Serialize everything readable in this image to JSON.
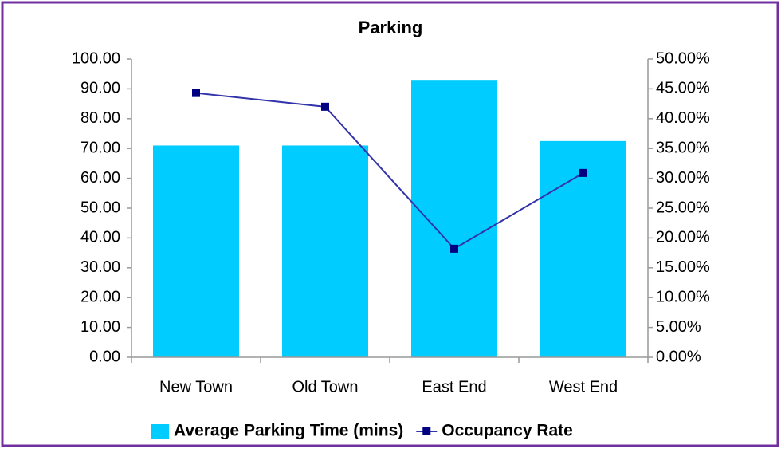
{
  "chart_data": {
    "type": "combo",
    "title": "Parking",
    "categories": [
      "New Town",
      "Old Town",
      "East End",
      "West End"
    ],
    "series": [
      {
        "name": "Average Parking Time (mins)",
        "type": "bar",
        "color": "#00ccff",
        "values": [
          71,
          71,
          93,
          72.5
        ]
      },
      {
        "name": "Occupancy Rate",
        "type": "line",
        "color": "#000080",
        "axis": "y2",
        "values": [
          44.3,
          42,
          18.2,
          30.9
        ]
      }
    ],
    "ylim": [
      0,
      100
    ],
    "yticks": [
      {
        "value": 0,
        "label": "0.00"
      },
      {
        "value": 10,
        "label": "10.00"
      },
      {
        "value": 20,
        "label": "20.00"
      },
      {
        "value": 30,
        "label": "30.00"
      },
      {
        "value": 40,
        "label": "40.00"
      },
      {
        "value": 50,
        "label": "50.00"
      },
      {
        "value": 60,
        "label": "60.00"
      },
      {
        "value": 70,
        "label": "70.00"
      },
      {
        "value": 80,
        "label": "80.00"
      },
      {
        "value": 90,
        "label": "90.00"
      },
      {
        "value": 100,
        "label": "100.00"
      }
    ],
    "y2lim": [
      0,
      50
    ],
    "y2ticks": [
      {
        "value": 0,
        "label": "0.00%"
      },
      {
        "value": 5,
        "label": "5.00%"
      },
      {
        "value": 10,
        "label": "10.00%"
      },
      {
        "value": 15,
        "label": "15.00%"
      },
      {
        "value": 20,
        "label": "20.00%"
      },
      {
        "value": 25,
        "label": "25.00%"
      },
      {
        "value": 30,
        "label": "30.00%"
      },
      {
        "value": 35,
        "label": "35.00%"
      },
      {
        "value": 40,
        "label": "40.00%"
      },
      {
        "value": 45,
        "label": "45.00%"
      },
      {
        "value": 50,
        "label": "50.00%"
      }
    ],
    "grid": false,
    "legend": "bottom"
  }
}
